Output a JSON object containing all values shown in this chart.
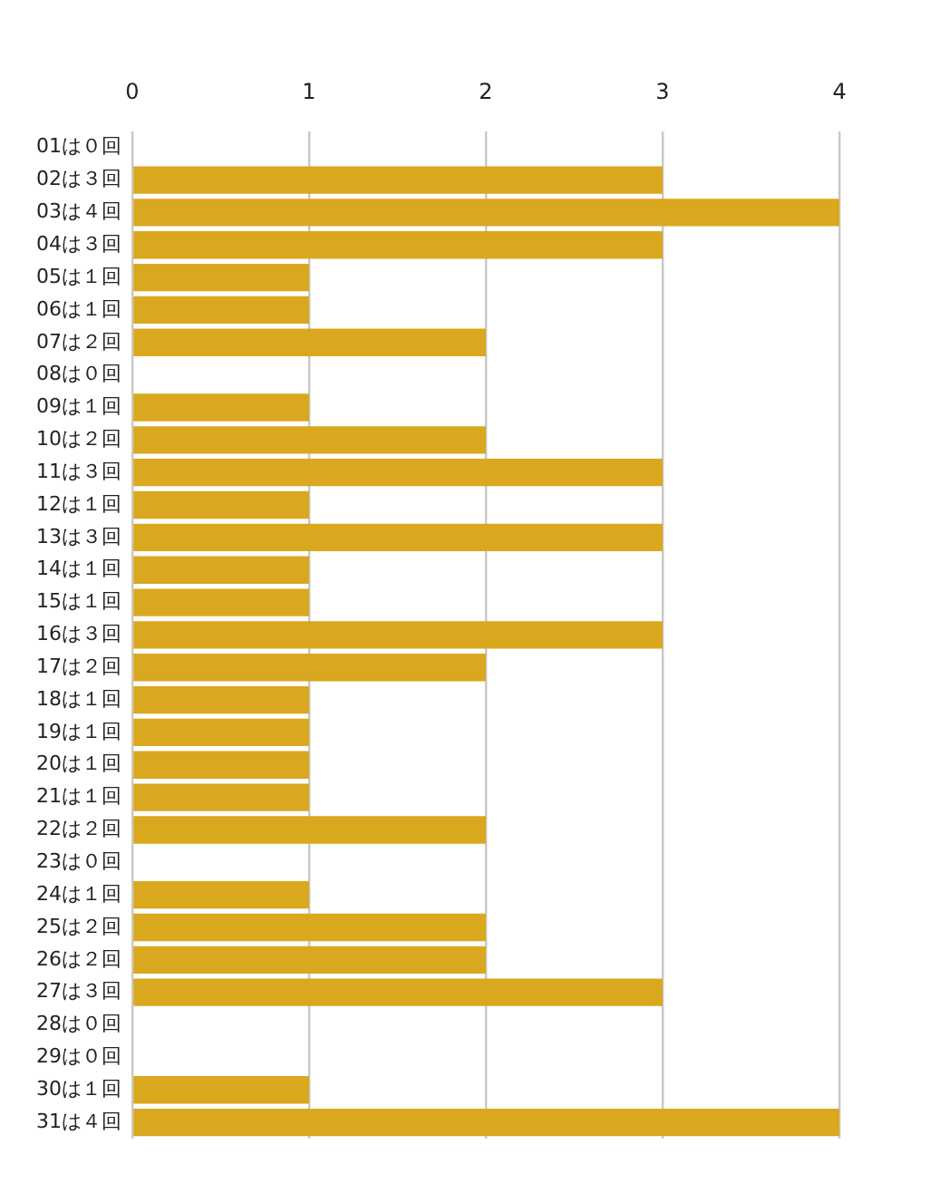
{
  "chart_data": {
    "type": "bar",
    "orientation": "horizontal",
    "categories": [
      "01は０回",
      "02は３回",
      "03は４回",
      "04は３回",
      "05は１回",
      "06は１回",
      "07は２回",
      "08は０回",
      "09は１回",
      "10は２回",
      "11は３回",
      "12は１回",
      "13は３回",
      "14は１回",
      "15は１回",
      "16は３回",
      "17は２回",
      "18は１回",
      "19は１回",
      "20は１回",
      "21は１回",
      "22は２回",
      "23は０回",
      "24は１回",
      "25は２回",
      "26は２回",
      "27は３回",
      "28は０回",
      "29は０回",
      "30は１回",
      "31は４回"
    ],
    "values": [
      0,
      3,
      4,
      3,
      1,
      1,
      2,
      0,
      1,
      2,
      3,
      1,
      3,
      1,
      1,
      3,
      2,
      1,
      1,
      1,
      1,
      2,
      0,
      1,
      2,
      2,
      3,
      0,
      0,
      1,
      4
    ],
    "color": "#d9a81e",
    "xlim": [
      0,
      4
    ],
    "xticks": [
      0,
      1,
      2,
      3,
      4
    ],
    "grid": "x",
    "legend": false
  }
}
